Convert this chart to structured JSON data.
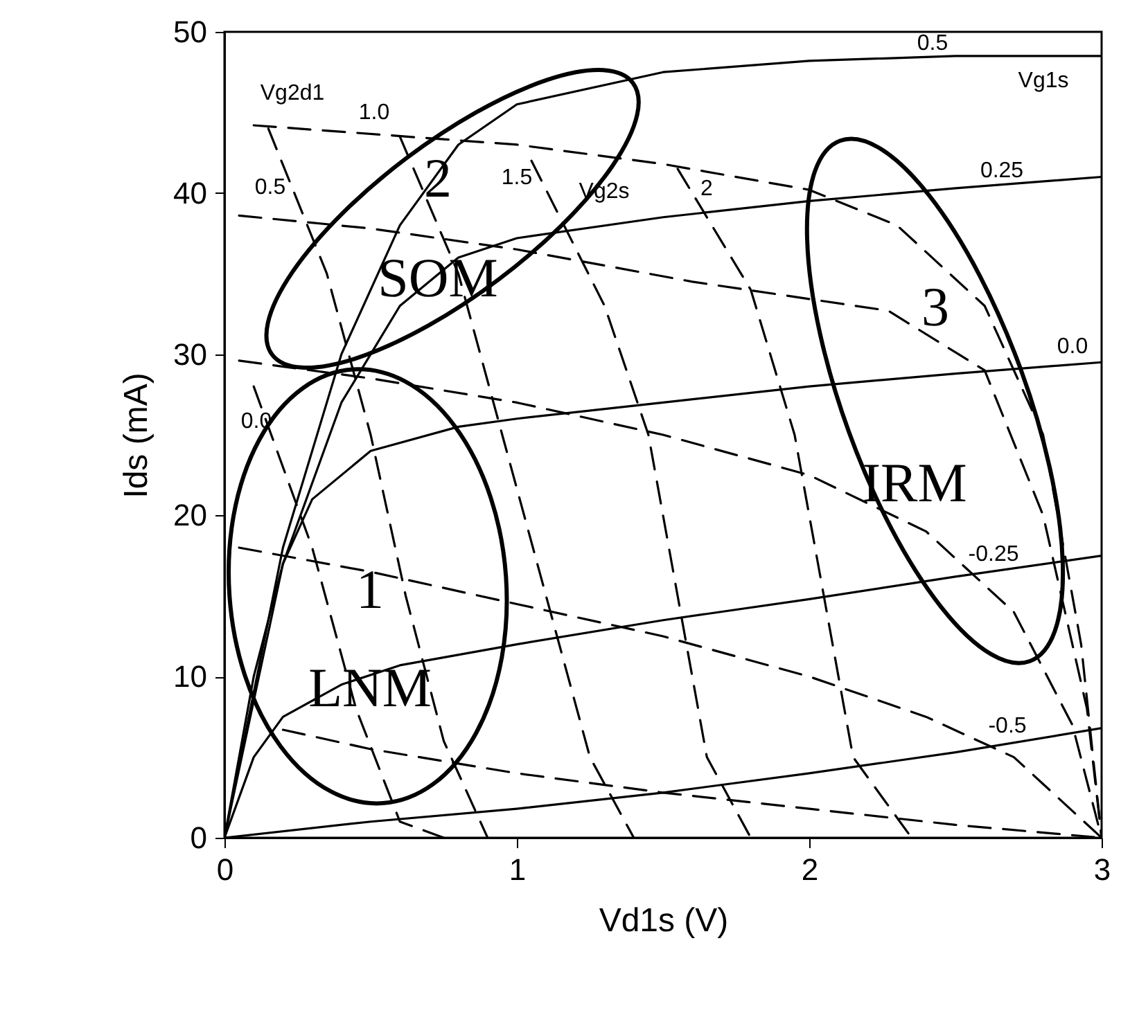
{
  "chart_data": {
    "type": "line",
    "xlabel": "Vd1s (V)",
    "ylabel": "Ids (mA)",
    "xlim": [
      0,
      3
    ],
    "ylim": [
      0,
      50
    ],
    "xticks": [
      0,
      1,
      2,
      3
    ],
    "yticks": [
      0,
      10,
      20,
      30,
      40,
      50
    ],
    "grid": false,
    "marker": "none",
    "series": [
      {
        "color": "#000000",
        "line_style": "solid",
        "x": [
          0,
          0.2,
          0.4,
          0.6,
          0.8,
          1.0,
          1.5,
          2.0,
          2.5,
          3.0
        ],
        "values": [
          0,
          18,
          30,
          38,
          43,
          45.5,
          47.5,
          48.2,
          48.5,
          48.5
        ]
      },
      {
        "color": "#000000",
        "line_style": "solid",
        "x": [
          0,
          0.2,
          0.4,
          0.6,
          0.8,
          1.0,
          1.5,
          2.0,
          2.5,
          3.0
        ],
        "values": [
          0,
          17,
          27,
          33,
          36,
          37.2,
          38.5,
          39.5,
          40.3,
          41
        ]
      },
      {
        "color": "#000000",
        "line_style": "solid",
        "x": [
          0,
          0.1,
          0.2,
          0.3,
          0.5,
          0.8,
          1.0,
          1.5,
          2.0,
          2.5,
          3.0
        ],
        "values": [
          0,
          10,
          17,
          21,
          24,
          25.5,
          26,
          27,
          28,
          28.8,
          29.5
        ]
      },
      {
        "color": "#000000",
        "line_style": "solid",
        "x": [
          0,
          0.1,
          0.2,
          0.4,
          0.6,
          1.0,
          1.5,
          2.0,
          2.5,
          3.0
        ],
        "values": [
          0,
          5,
          7.5,
          9.5,
          10.7,
          12,
          13.5,
          14.8,
          16.2,
          17.5
        ]
      },
      {
        "color": "#000000",
        "line_style": "solid",
        "x": [
          0,
          0.5,
          1.0,
          1.5,
          2.0,
          2.5,
          3.0
        ],
        "values": [
          0,
          1,
          1.8,
          2.8,
          4,
          5.3,
          6.8
        ]
      },
      {
        "color": "#000000",
        "line_style": "dashed",
        "x": [
          0.1,
          1.0,
          1.5,
          2.0,
          2.3,
          2.6,
          2.8,
          2.93,
          3.0
        ],
        "values": [
          44.2,
          43,
          41.8,
          40.2,
          38,
          33,
          25,
          12,
          0
        ]
      },
      {
        "color": "#000000",
        "line_style": "dashed",
        "x": [
          0.05,
          0.5,
          1.0,
          1.6,
          2.27,
          2.6,
          2.8,
          2.95,
          3.0
        ],
        "values": [
          38.6,
          37.8,
          36.5,
          34.5,
          32.7,
          29,
          20,
          8,
          0
        ]
      },
      {
        "color": "#000000",
        "line_style": "dashed",
        "x": [
          0.05,
          0.5,
          1.0,
          1.5,
          2.0,
          2.4,
          2.7,
          2.9,
          3.0
        ],
        "values": [
          29.6,
          28.5,
          27,
          25,
          22.5,
          19,
          14,
          7,
          0
        ]
      },
      {
        "color": "#000000",
        "line_style": "dashed",
        "x": [
          0.05,
          0.5,
          1.0,
          1.5,
          2.0,
          2.4,
          2.7,
          3.0
        ],
        "values": [
          18,
          16.5,
          14.5,
          12.5,
          10,
          7.5,
          5,
          0
        ]
      },
      {
        "color": "#000000",
        "line_style": "dashed",
        "x": [
          0.2,
          0.5,
          1.0,
          1.5,
          2.0,
          2.5,
          3.0
        ],
        "values": [
          6.7,
          5.5,
          4,
          2.8,
          1.8,
          0.8,
          0
        ]
      },
      {
        "color": "#000000",
        "line_style": "dashed",
        "x": [
          0.1,
          0.3,
          0.45,
          0.6,
          0.75
        ],
        "values": [
          28,
          18,
          8,
          1,
          0
        ]
      },
      {
        "color": "#000000",
        "line_style": "dashed",
        "x": [
          0.15,
          0.35,
          0.5,
          0.62,
          0.75,
          0.9
        ],
        "values": [
          44,
          35,
          25,
          15,
          6,
          0
        ]
      },
      {
        "color": "#000000",
        "line_style": "dashed",
        "x": [
          0.6,
          0.8,
          0.95,
          1.1,
          1.25,
          1.4
        ],
        "values": [
          43.5,
          35,
          25,
          15,
          5,
          0
        ]
      },
      {
        "color": "#000000",
        "line_style": "dashed",
        "x": [
          1.05,
          1.3,
          1.45,
          1.55,
          1.65,
          1.8
        ],
        "values": [
          42,
          33,
          25,
          15,
          5,
          0
        ]
      },
      {
        "color": "#000000",
        "line_style": "dashed",
        "x": [
          1.55,
          1.8,
          1.95,
          2.05,
          2.15,
          2.35
        ],
        "values": [
          41.5,
          34,
          25,
          15,
          5,
          0
        ]
      }
    ],
    "annotations": [
      "2",
      "SOM",
      "3",
      "IRM",
      "1",
      "LNM",
      "Vg2d1",
      "0.0",
      "Vg2s",
      "Vg1s",
      "0.5",
      "1.0",
      "1.5",
      "2",
      "0.5",
      "0.25",
      "0.0",
      "-0.25",
      "-0.5"
    ]
  }
}
